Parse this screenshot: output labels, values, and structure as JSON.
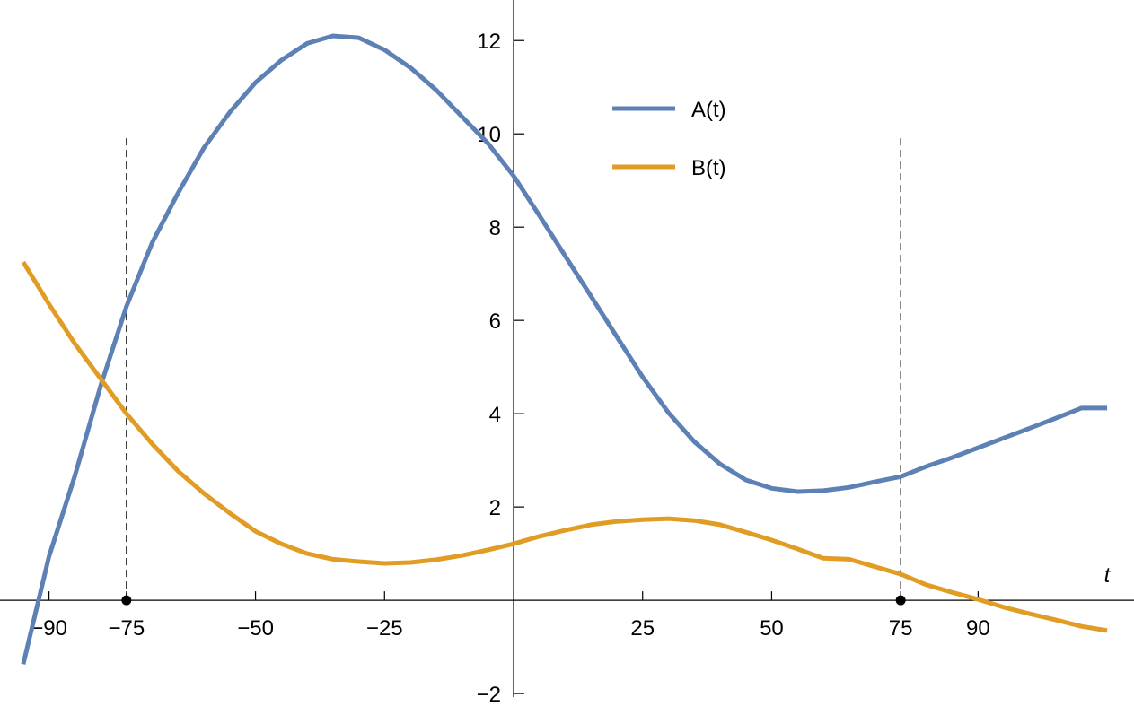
{
  "chart_data": {
    "type": "line",
    "x_label": "t",
    "x": [
      -95,
      -90,
      -85,
      -80,
      -75,
      -70,
      -65,
      -60,
      -55,
      -50,
      -45,
      -40,
      -35,
      -30,
      -25,
      -20,
      -15,
      -10,
      -5,
      0,
      5,
      10,
      15,
      20,
      25,
      30,
      35,
      40,
      45,
      50,
      55,
      60,
      65,
      70,
      75,
      80,
      85,
      90,
      95,
      100,
      105,
      110,
      115
    ],
    "series": [
      {
        "name": "A(t)",
        "color": "#5e81b5",
        "values": [
          -1.37,
          0.94,
          2.67,
          4.6,
          6.3,
          7.67,
          8.73,
          9.7,
          10.46,
          11.1,
          11.58,
          11.94,
          12.1,
          12.06,
          11.8,
          11.42,
          10.94,
          10.37,
          9.8,
          9.1,
          8.25,
          7.38,
          6.52,
          5.65,
          4.79,
          4.02,
          3.4,
          2.92,
          2.58,
          2.4,
          2.33,
          2.35,
          2.42,
          2.54,
          2.65,
          2.87,
          3.06,
          3.27,
          3.48,
          3.69,
          3.9,
          4.12,
          4.12
        ]
      },
      {
        "name": "B(t)",
        "color": "#e19c24",
        "values": [
          7.25,
          6.35,
          5.5,
          4.75,
          4.0,
          3.35,
          2.77,
          2.29,
          1.87,
          1.48,
          1.21,
          1.0,
          0.88,
          0.83,
          0.79,
          0.81,
          0.87,
          0.96,
          1.08,
          1.21,
          1.37,
          1.5,
          1.62,
          1.69,
          1.73,
          1.75,
          1.71,
          1.62,
          1.46,
          1.29,
          1.1,
          0.9,
          0.88,
          0.72,
          0.56,
          0.33,
          0.17,
          0.02,
          -0.15,
          -0.29,
          -0.42,
          -0.56,
          -0.65
        ]
      }
    ],
    "xlim": [
      -99.5,
      120.2
    ],
    "ylim": [
      -2.46,
      12.87
    ],
    "xticks": [
      {
        "value": -90,
        "label": "−90"
      },
      {
        "value": -75,
        "label": "−75"
      },
      {
        "value": -50,
        "label": "−50"
      },
      {
        "value": -25,
        "label": "−25"
      },
      25,
      50,
      75,
      90
    ],
    "yticks": [
      {
        "value": -2,
        "label": "−2"
      },
      2,
      4,
      6,
      8,
      10,
      12
    ],
    "reference_lines": {
      "x": [
        -75,
        75
      ],
      "y_range": [
        0,
        10
      ]
    },
    "legend_position": "top-center"
  }
}
